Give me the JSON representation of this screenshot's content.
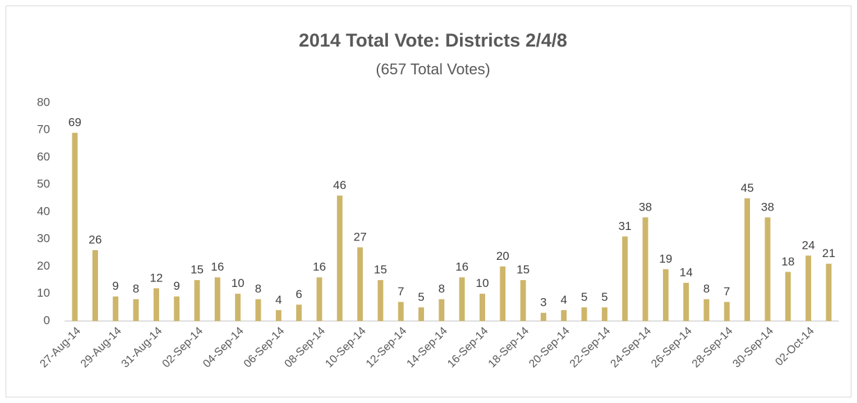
{
  "chart_data": {
    "type": "bar",
    "title": "2014 Total Vote: Districts 2/4/8",
    "subtitle": "(657 Total Votes)",
    "categories": [
      "27-Aug-14",
      null,
      "29-Aug-14",
      null,
      "31-Aug-14",
      null,
      "02-Sep-14",
      null,
      "04-Sep-14",
      null,
      "06-Sep-14",
      null,
      "08-Sep-14",
      null,
      "10-Sep-14",
      null,
      "12-Sep-14",
      null,
      "14-Sep-14",
      null,
      "16-Sep-14",
      null,
      "18-Sep-14",
      null,
      "20-Sep-14",
      null,
      "22-Sep-14",
      null,
      "24-Sep-14",
      null,
      "26-Sep-14",
      null,
      "28-Sep-14",
      null,
      "30-Sep-14",
      null,
      "02-Oct-14",
      null
    ],
    "values": [
      69,
      26,
      9,
      8,
      12,
      9,
      15,
      16,
      10,
      8,
      4,
      6,
      16,
      46,
      27,
      15,
      7,
      5,
      8,
      16,
      10,
      20,
      15,
      3,
      4,
      5,
      5,
      31,
      38,
      19,
      14,
      8,
      7,
      45,
      38,
      18,
      24,
      21
    ],
    "color": "#cdb56a",
    "ylim": [
      0,
      80
    ],
    "yticks": [
      0,
      10,
      20,
      30,
      40,
      50,
      60,
      70,
      80
    ],
    "grid": false
  }
}
